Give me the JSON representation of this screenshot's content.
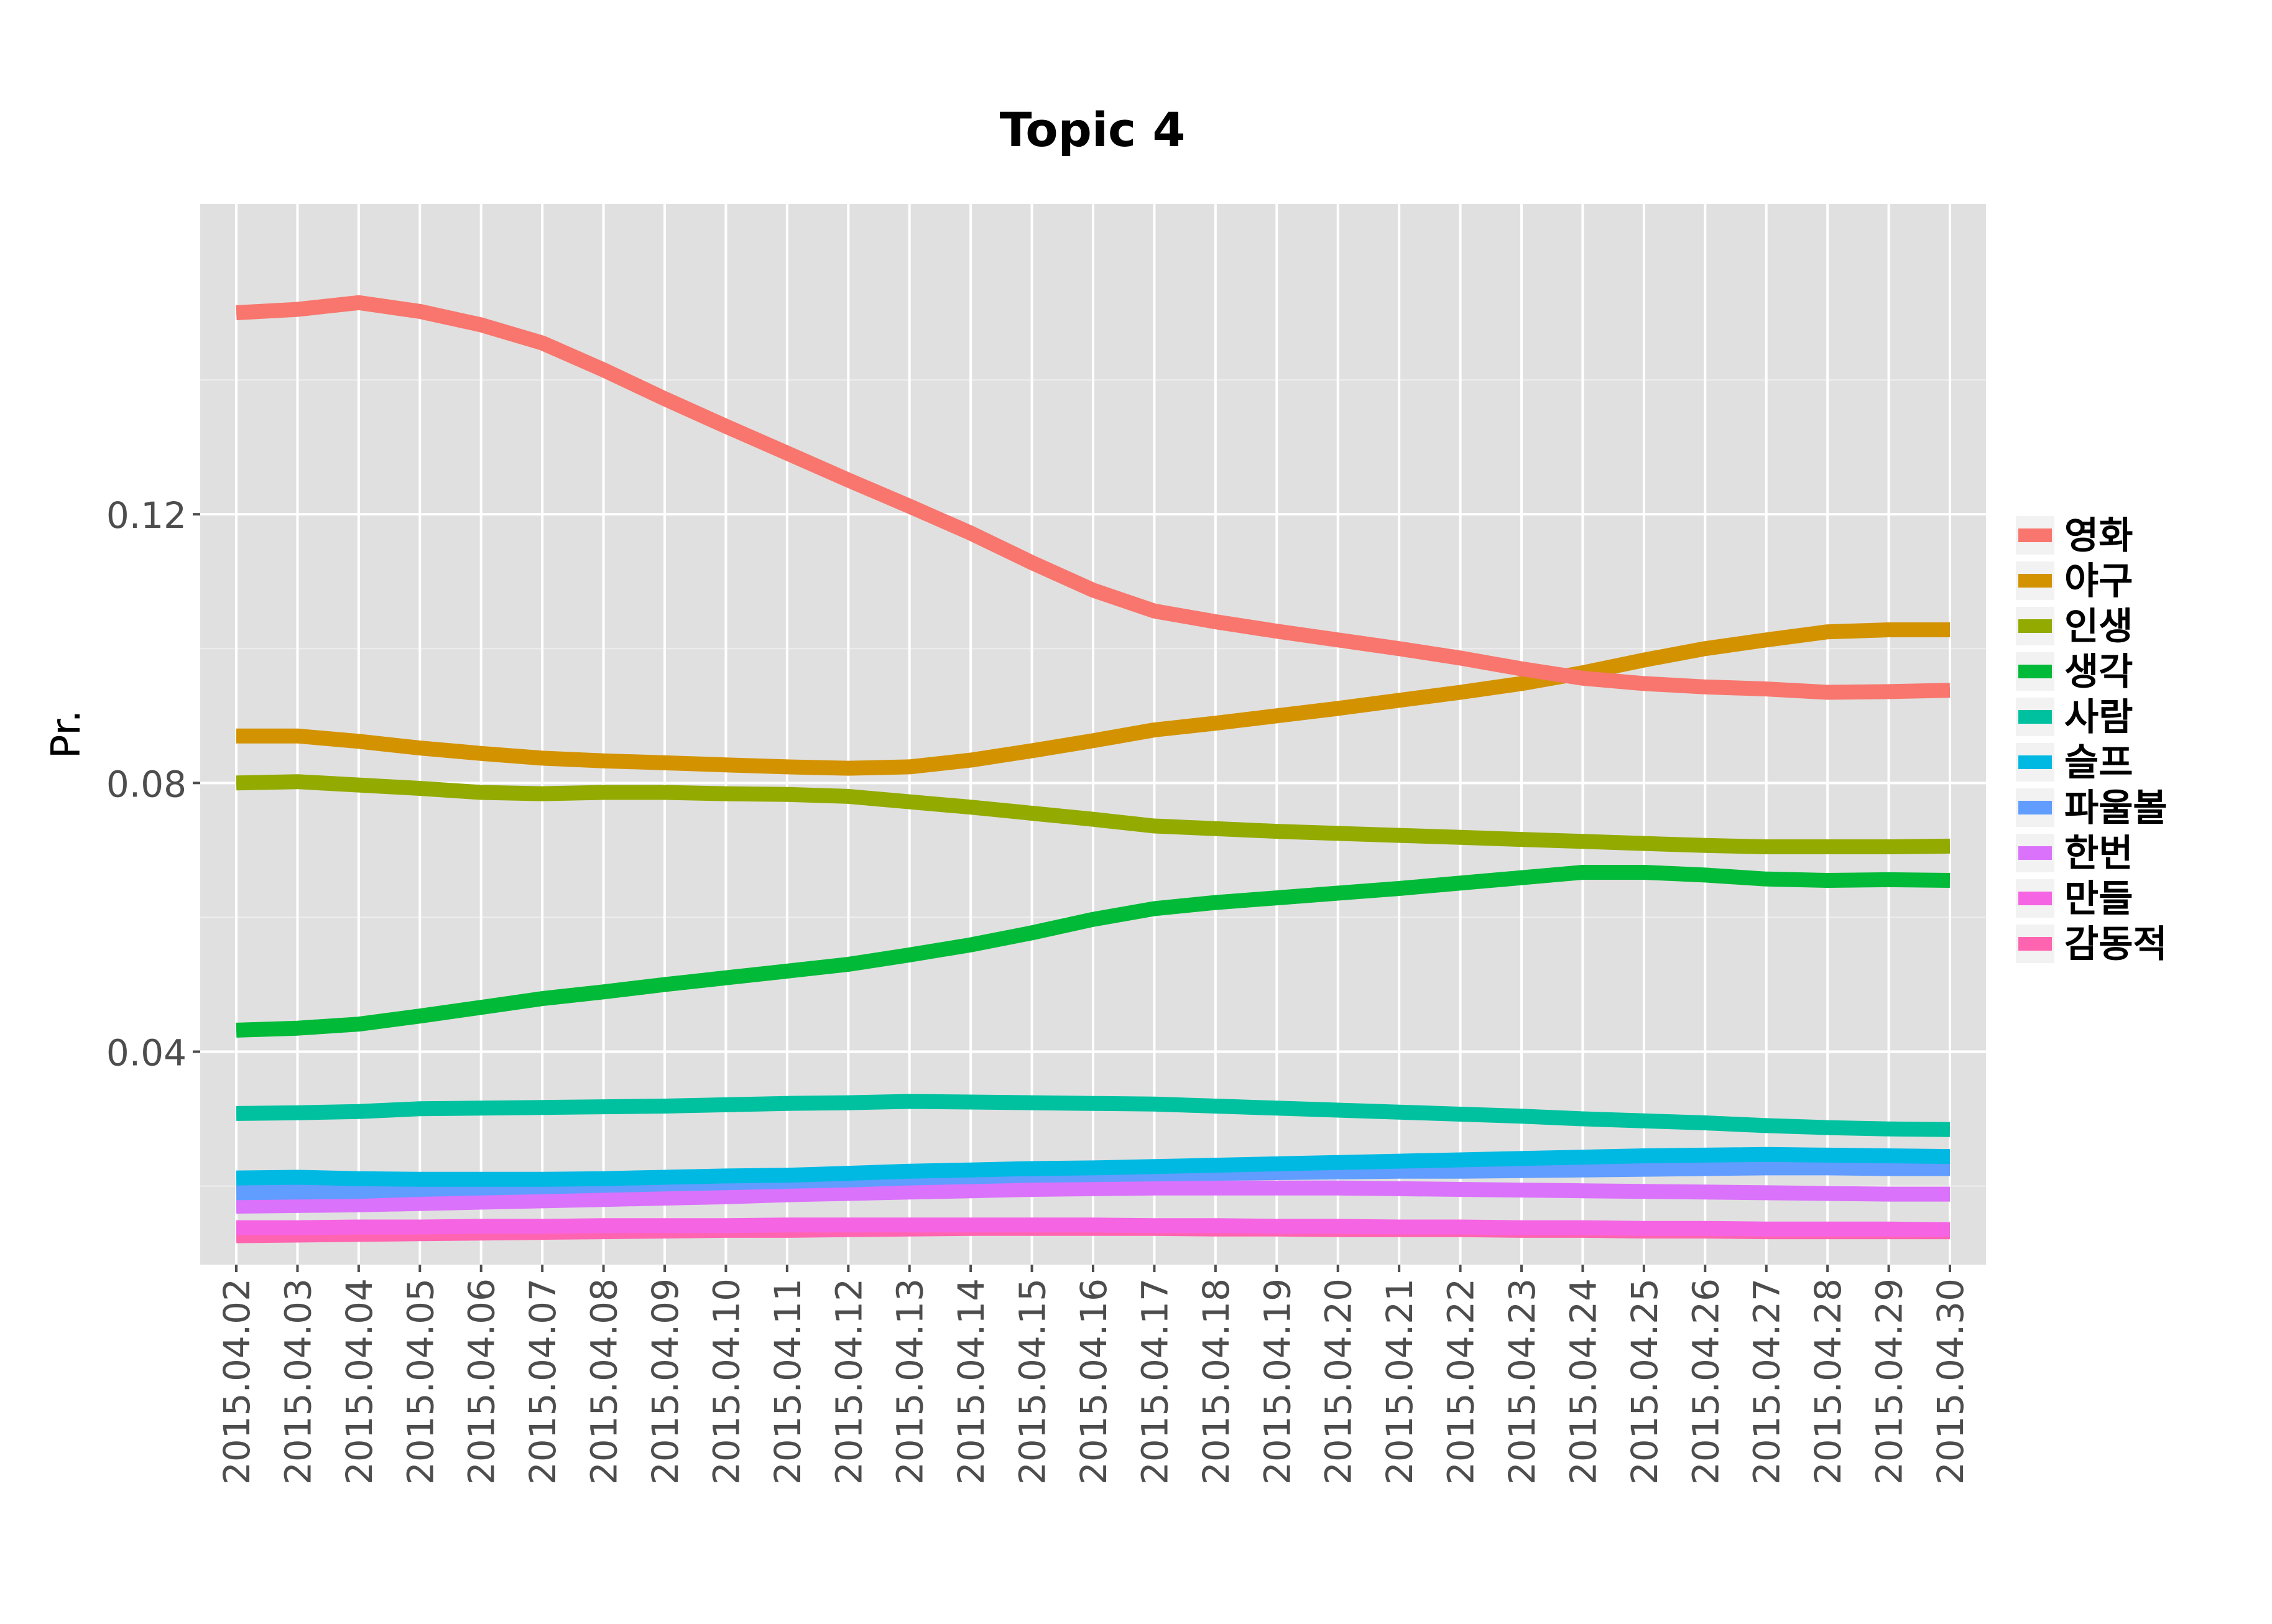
{
  "chart_data": {
    "type": "line",
    "title": "Topic 4",
    "xlabel": "",
    "ylabel": "Pr.",
    "ylim": [
      0.0083,
      0.1662
    ],
    "yticks": [
      "0.04",
      "0.08",
      "0.12"
    ],
    "grid": true,
    "legend_position": "right",
    "x": [
      "2015.04.02",
      "2015.04.03",
      "2015.04.04",
      "2015.04.05",
      "2015.04.06",
      "2015.04.07",
      "2015.04.08",
      "2015.04.09",
      "2015.04.10",
      "2015.04.11",
      "2015.04.12",
      "2015.04.13",
      "2015.04.14",
      "2015.04.15",
      "2015.04.16",
      "2015.04.17",
      "2015.04.18",
      "2015.04.19",
      "2015.04.20",
      "2015.04.21",
      "2015.04.22",
      "2015.04.23",
      "2015.04.24",
      "2015.04.25",
      "2015.04.26",
      "2015.04.27",
      "2015.04.28",
      "2015.04.29",
      "2015.04.30"
    ],
    "series": [
      {
        "name": "영화",
        "color": "#F8766D",
        "values": [
          0.15,
          0.1505,
          0.1515,
          0.1502,
          0.1482,
          0.1455,
          0.1415,
          0.1372,
          0.1331,
          0.1291,
          0.1251,
          0.1212,
          0.1172,
          0.1128,
          0.1087,
          0.1056,
          0.104,
          0.1026,
          0.1013,
          0.1,
          0.0986,
          0.097,
          0.0956,
          0.0948,
          0.0943,
          0.094,
          0.0935,
          0.0936,
          0.0938
        ]
      },
      {
        "name": "야구",
        "color": "#D39200",
        "values": [
          0.087,
          0.087,
          0.0862,
          0.0852,
          0.0844,
          0.0837,
          0.0833,
          0.083,
          0.0827,
          0.0824,
          0.0822,
          0.0824,
          0.0834,
          0.0848,
          0.0863,
          0.0879,
          0.0889,
          0.09,
          0.0911,
          0.0923,
          0.0935,
          0.0948,
          0.0964,
          0.0983,
          0.1,
          0.1013,
          0.1025,
          0.1028,
          0.1028
        ]
      },
      {
        "name": "인생",
        "color": "#93AA00",
        "values": [
          0.08,
          0.0802,
          0.0797,
          0.0792,
          0.0786,
          0.0784,
          0.0786,
          0.0786,
          0.0784,
          0.0783,
          0.078,
          0.0772,
          0.0764,
          0.0755,
          0.0746,
          0.0736,
          0.0732,
          0.0728,
          0.0725,
          0.0722,
          0.0719,
          0.0716,
          0.0713,
          0.071,
          0.0707,
          0.0705,
          0.0705,
          0.0705,
          0.0706
        ]
      },
      {
        "name": "생각",
        "color": "#00BA38",
        "values": [
          0.0432,
          0.0435,
          0.0441,
          0.0453,
          0.0466,
          0.0479,
          0.0489,
          0.05,
          0.051,
          0.052,
          0.053,
          0.0544,
          0.0559,
          0.0577,
          0.0597,
          0.0613,
          0.0622,
          0.0629,
          0.0636,
          0.0643,
          0.0651,
          0.0659,
          0.0667,
          0.0667,
          0.0663,
          0.0657,
          0.0655,
          0.0656,
          0.0655
        ]
      },
      {
        "name": "사람",
        "color": "#00C19F",
        "values": [
          0.0308,
          0.0309,
          0.0311,
          0.0315,
          0.0316,
          0.0317,
          0.0318,
          0.0319,
          0.0321,
          0.0323,
          0.0324,
          0.0326,
          0.0325,
          0.0324,
          0.0323,
          0.0322,
          0.0319,
          0.0316,
          0.0313,
          0.031,
          0.0307,
          0.0304,
          0.03,
          0.0297,
          0.0294,
          0.029,
          0.0287,
          0.0285,
          0.0284
        ]
      },
      {
        "name": "슬프",
        "color": "#00B9E3",
        "values": [
          0.0212,
          0.0213,
          0.0211,
          0.021,
          0.021,
          0.021,
          0.0211,
          0.0213,
          0.0215,
          0.0216,
          0.0219,
          0.0222,
          0.0224,
          0.0226,
          0.0227,
          0.0229,
          0.0231,
          0.0233,
          0.0235,
          0.0237,
          0.0239,
          0.0241,
          0.0243,
          0.0245,
          0.0246,
          0.0247,
          0.0246,
          0.0245,
          0.0244
        ]
      },
      {
        "name": "파울볼",
        "color": "#619CFF",
        "values": [
          0.019,
          0.0191,
          0.0192,
          0.0195,
          0.0197,
          0.0199,
          0.0201,
          0.0203,
          0.0205,
          0.0207,
          0.0209,
          0.0212,
          0.0214,
          0.0216,
          0.0217,
          0.0218,
          0.0219,
          0.022,
          0.0221,
          0.0222,
          0.0222,
          0.0223,
          0.0224,
          0.0225,
          0.0226,
          0.0227,
          0.0227,
          0.0226,
          0.0226
        ]
      },
      {
        "name": "한번",
        "color": "#DB72FB",
        "values": [
          0.017,
          0.0171,
          0.0172,
          0.0174,
          0.0176,
          0.0178,
          0.018,
          0.0182,
          0.0184,
          0.0187,
          0.0189,
          0.0191,
          0.0193,
          0.0195,
          0.0196,
          0.0197,
          0.0197,
          0.0197,
          0.0197,
          0.0196,
          0.0195,
          0.0194,
          0.0193,
          0.0192,
          0.0191,
          0.019,
          0.0189,
          0.0188,
          0.0188
        ]
      },
      {
        "name": "만들",
        "color": "#F564E3",
        "values": [
          0.0138,
          0.0138,
          0.0139,
          0.0139,
          0.014,
          0.014,
          0.0141,
          0.0141,
          0.0141,
          0.0142,
          0.0142,
          0.0142,
          0.0142,
          0.0142,
          0.0142,
          0.0141,
          0.0141,
          0.014,
          0.014,
          0.0139,
          0.0139,
          0.0138,
          0.0138,
          0.0137,
          0.0137,
          0.0136,
          0.0136,
          0.0136,
          0.0135
        ]
      },
      {
        "name": "감동적",
        "color": "#FF64B0",
        "values": [
          0.0126,
          0.0127,
          0.0128,
          0.0129,
          0.013,
          0.0131,
          0.0132,
          0.0133,
          0.0134,
          0.0134,
          0.0135,
          0.0136,
          0.0137,
          0.0137,
          0.0137,
          0.0137,
          0.0136,
          0.0136,
          0.0135,
          0.0135,
          0.0135,
          0.0134,
          0.0134,
          0.0133,
          0.0133,
          0.0132,
          0.0132,
          0.0132,
          0.0132
        ]
      }
    ]
  }
}
